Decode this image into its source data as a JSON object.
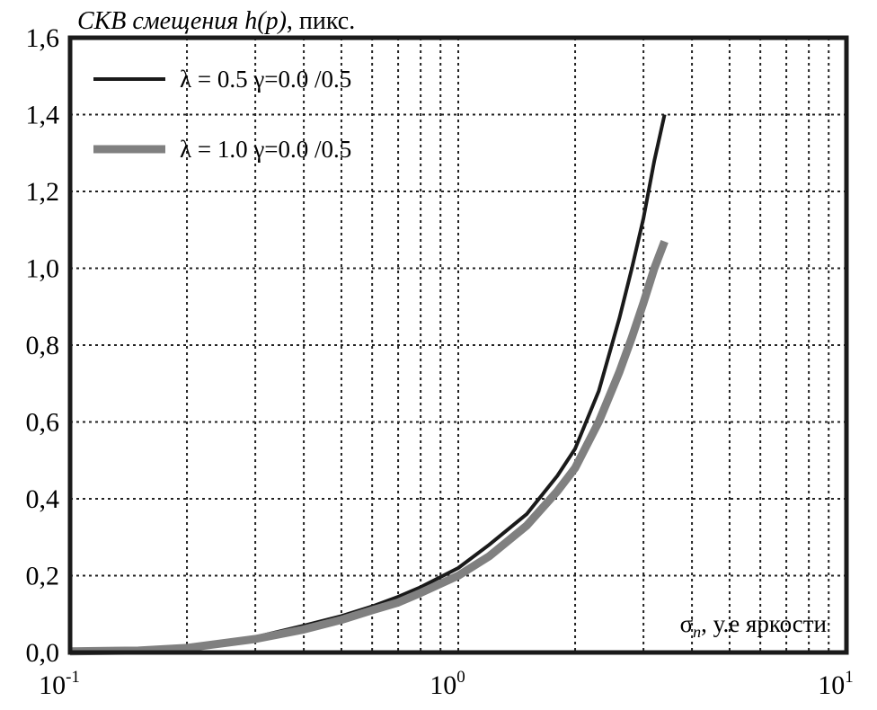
{
  "chart_data": {
    "type": "line",
    "title_main": "СКВ смещения  h(p)",
    "title_suffix": ", пикс.",
    "xlabel_symbol": "σ",
    "xlabel_sub": "n",
    "xlabel_rest": ", у.е яркости",
    "x_scale": "log",
    "xlim": [
      0.1,
      10
    ],
    "ylim": [
      0.0,
      1.6
    ],
    "grid": true,
    "legend_position": "top-left",
    "y_ticks": [
      "0,0",
      "0,2",
      "0,4",
      "0,6",
      "0,8",
      "1,0",
      "1,2",
      "1,4",
      "1,6"
    ],
    "x_ticks": [
      {
        "base": "10",
        "exp": "-1"
      },
      {
        "base": "10",
        "exp": "0"
      },
      {
        "base": "10",
        "exp": "1"
      }
    ],
    "series": [
      {
        "name": "λ = 0.5 γ=0.0 /0.5",
        "color": "#1a1a1a",
        "x": [
          0.1,
          0.15,
          0.2,
          0.3,
          0.4,
          0.5,
          0.6,
          0.7,
          0.8,
          1.0,
          1.2,
          1.5,
          1.8,
          2.0,
          2.3,
          2.6,
          2.8,
          3.0,
          3.2,
          3.4
        ],
        "y": [
          0.005,
          0.008,
          0.016,
          0.04,
          0.07,
          0.095,
          0.12,
          0.145,
          0.17,
          0.22,
          0.28,
          0.36,
          0.46,
          0.53,
          0.68,
          0.87,
          1.0,
          1.13,
          1.28,
          1.4
        ]
      },
      {
        "name": "λ = 1.0 γ=0.0 /0.5",
        "color": "#808080",
        "x": [
          0.1,
          0.15,
          0.2,
          0.3,
          0.4,
          0.5,
          0.6,
          0.7,
          0.8,
          1.0,
          1.2,
          1.5,
          1.8,
          2.0,
          2.3,
          2.6,
          2.8,
          3.0,
          3.2,
          3.4
        ],
        "y": [
          0.003,
          0.005,
          0.012,
          0.035,
          0.06,
          0.085,
          0.11,
          0.13,
          0.155,
          0.2,
          0.25,
          0.33,
          0.42,
          0.48,
          0.6,
          0.73,
          0.82,
          0.91,
          1.0,
          1.07
        ]
      }
    ]
  }
}
